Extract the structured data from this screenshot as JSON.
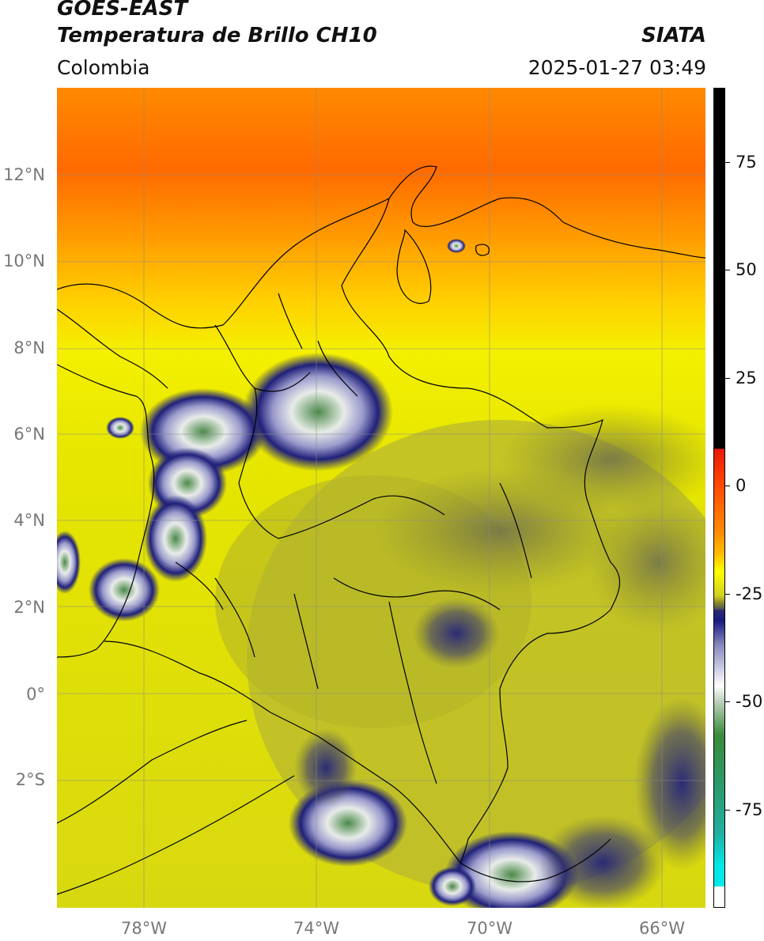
{
  "header": {
    "satellite": "GOES-EAST",
    "product": "Temperatura de Brillo CH10",
    "agency": "SIATA",
    "region": "Colombia",
    "timestamp": "2025-01-27 03:49"
  },
  "map": {
    "lat_range": [
      -5,
      14
    ],
    "lon_range": [
      -80,
      -65
    ],
    "lat_ticks": [
      "12°N",
      "10°N",
      "8°N",
      "6°N",
      "4°N",
      "2°N",
      "0°",
      "2°S"
    ],
    "lon_ticks": [
      "78°W",
      "74°W",
      "70°W",
      "66°W"
    ],
    "gridlines": true
  },
  "colorbar": {
    "range": [
      -100,
      90
    ],
    "tick_labels": [
      "75",
      "50",
      "25",
      "0",
      "-25",
      "-50",
      "-75"
    ],
    "colors": {
      "warm_black": "#000000",
      "red": "#e8160a",
      "orange": "#ff8800",
      "yellow": "#ffff00",
      "olive": "#8a8a2a",
      "gray": "#5a5a50",
      "navy": "#1a1a80",
      "white": "#ffffff",
      "green": "#3a8a3a",
      "teal": "#20b0a0",
      "cyan": "#00e8e8"
    }
  }
}
